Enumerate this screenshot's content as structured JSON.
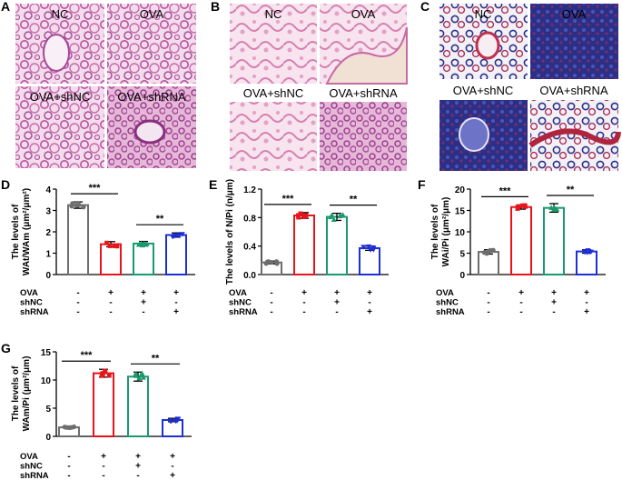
{
  "panel_letters": [
    "A",
    "B",
    "C",
    "D",
    "E",
    "F",
    "G"
  ],
  "micrographs": {
    "A": {
      "labels": [
        "NC",
        "OVA",
        "OVA+shNC",
        "OVA+shRNA"
      ],
      "stain": "H&E",
      "tone": "#c774b4"
    },
    "B": {
      "labels": [
        "NC",
        "OVA",
        "OVA+shNC",
        "OVA+shRNA"
      ],
      "stain": "H&E",
      "tone": "#d98fb8"
    },
    "C": {
      "labels": [
        "NC",
        "OVA",
        "OVA+shNC",
        "OVA+shRNA"
      ],
      "stain": "Masson trichrome",
      "tone": "#3e3c98"
    }
  },
  "x_axis_rows": {
    "row_labels": [
      "OVA",
      "shNC",
      "shRNA"
    ],
    "signs": [
      [
        "-",
        "+",
        "+",
        "+"
      ],
      [
        "-",
        "-",
        "+",
        "-"
      ],
      [
        "-",
        "-",
        "-",
        "+"
      ]
    ]
  },
  "group_colors": [
    "#6e6e6e",
    "#e8141c",
    "#1a9a6c",
    "#1c2fd8"
  ],
  "chart_data": [
    {
      "panel": "D",
      "type": "bar",
      "categories": [
        "NC",
        "OVA",
        "OVA+shNC",
        "OVA+shRNA"
      ],
      "values": [
        3.25,
        1.42,
        1.45,
        1.85
      ],
      "errors": [
        0.15,
        0.12,
        0.1,
        0.1
      ],
      "ylabel_line1": "The levels of",
      "ylabel_line2": "WAt/WAm (μm²/μm²)",
      "ylim": [
        0,
        4
      ],
      "yticks": [
        "0",
        "1",
        "2",
        "3",
        "4"
      ],
      "significance": [
        {
          "from": 0,
          "to": 1,
          "label": "***"
        },
        {
          "from": 2,
          "to": 3,
          "label": "**"
        }
      ]
    },
    {
      "panel": "E",
      "type": "bar",
      "categories": [
        "NC",
        "OVA",
        "OVA+shNC",
        "OVA+shRNA"
      ],
      "values": [
        0.17,
        0.83,
        0.81,
        0.37
      ],
      "errors": [
        0.02,
        0.04,
        0.05,
        0.03
      ],
      "ylabel_line1": "The levels of N/Pi (n/μm)",
      "ylabel_line2": "",
      "ylim": [
        0,
        1.2
      ],
      "yticks": [
        "0.0",
        "0.4",
        "0.8",
        "1.2"
      ],
      "significance": [
        {
          "from": 0,
          "to": 1,
          "label": "***"
        },
        {
          "from": 2,
          "to": 3,
          "label": "**"
        }
      ]
    },
    {
      "panel": "F",
      "type": "bar",
      "categories": [
        "NC",
        "OVA",
        "OVA+shNC",
        "OVA+shRNA"
      ],
      "values": [
        5.3,
        15.8,
        15.6,
        5.4
      ],
      "errors": [
        0.5,
        0.5,
        1.0,
        0.4
      ],
      "ylabel_line1": "The levels of",
      "ylabel_line2": "WAi/Pi (μm²/μm)",
      "ylim": [
        0,
        20
      ],
      "yticks": [
        "0",
        "5",
        "10",
        "15",
        "20"
      ],
      "significance": [
        {
          "from": 0,
          "to": 1,
          "label": "***"
        },
        {
          "from": 2,
          "to": 3,
          "label": "**"
        }
      ]
    },
    {
      "panel": "G",
      "type": "bar",
      "categories": [
        "NC",
        "OVA",
        "OVA+shNC",
        "OVA+shRNA"
      ],
      "values": [
        1.6,
        11.2,
        10.6,
        2.9
      ],
      "errors": [
        0.2,
        0.7,
        0.8,
        0.3
      ],
      "ylabel_line1": "The levels of",
      "ylabel_line2": "WAm/Pi (μm²/μm)",
      "ylim": [
        0,
        15
      ],
      "yticks": [
        "0",
        "5",
        "10",
        "15"
      ],
      "significance": [
        {
          "from": 0,
          "to": 1,
          "label": "***"
        },
        {
          "from": 2,
          "to": 3,
          "label": "**"
        }
      ]
    }
  ]
}
